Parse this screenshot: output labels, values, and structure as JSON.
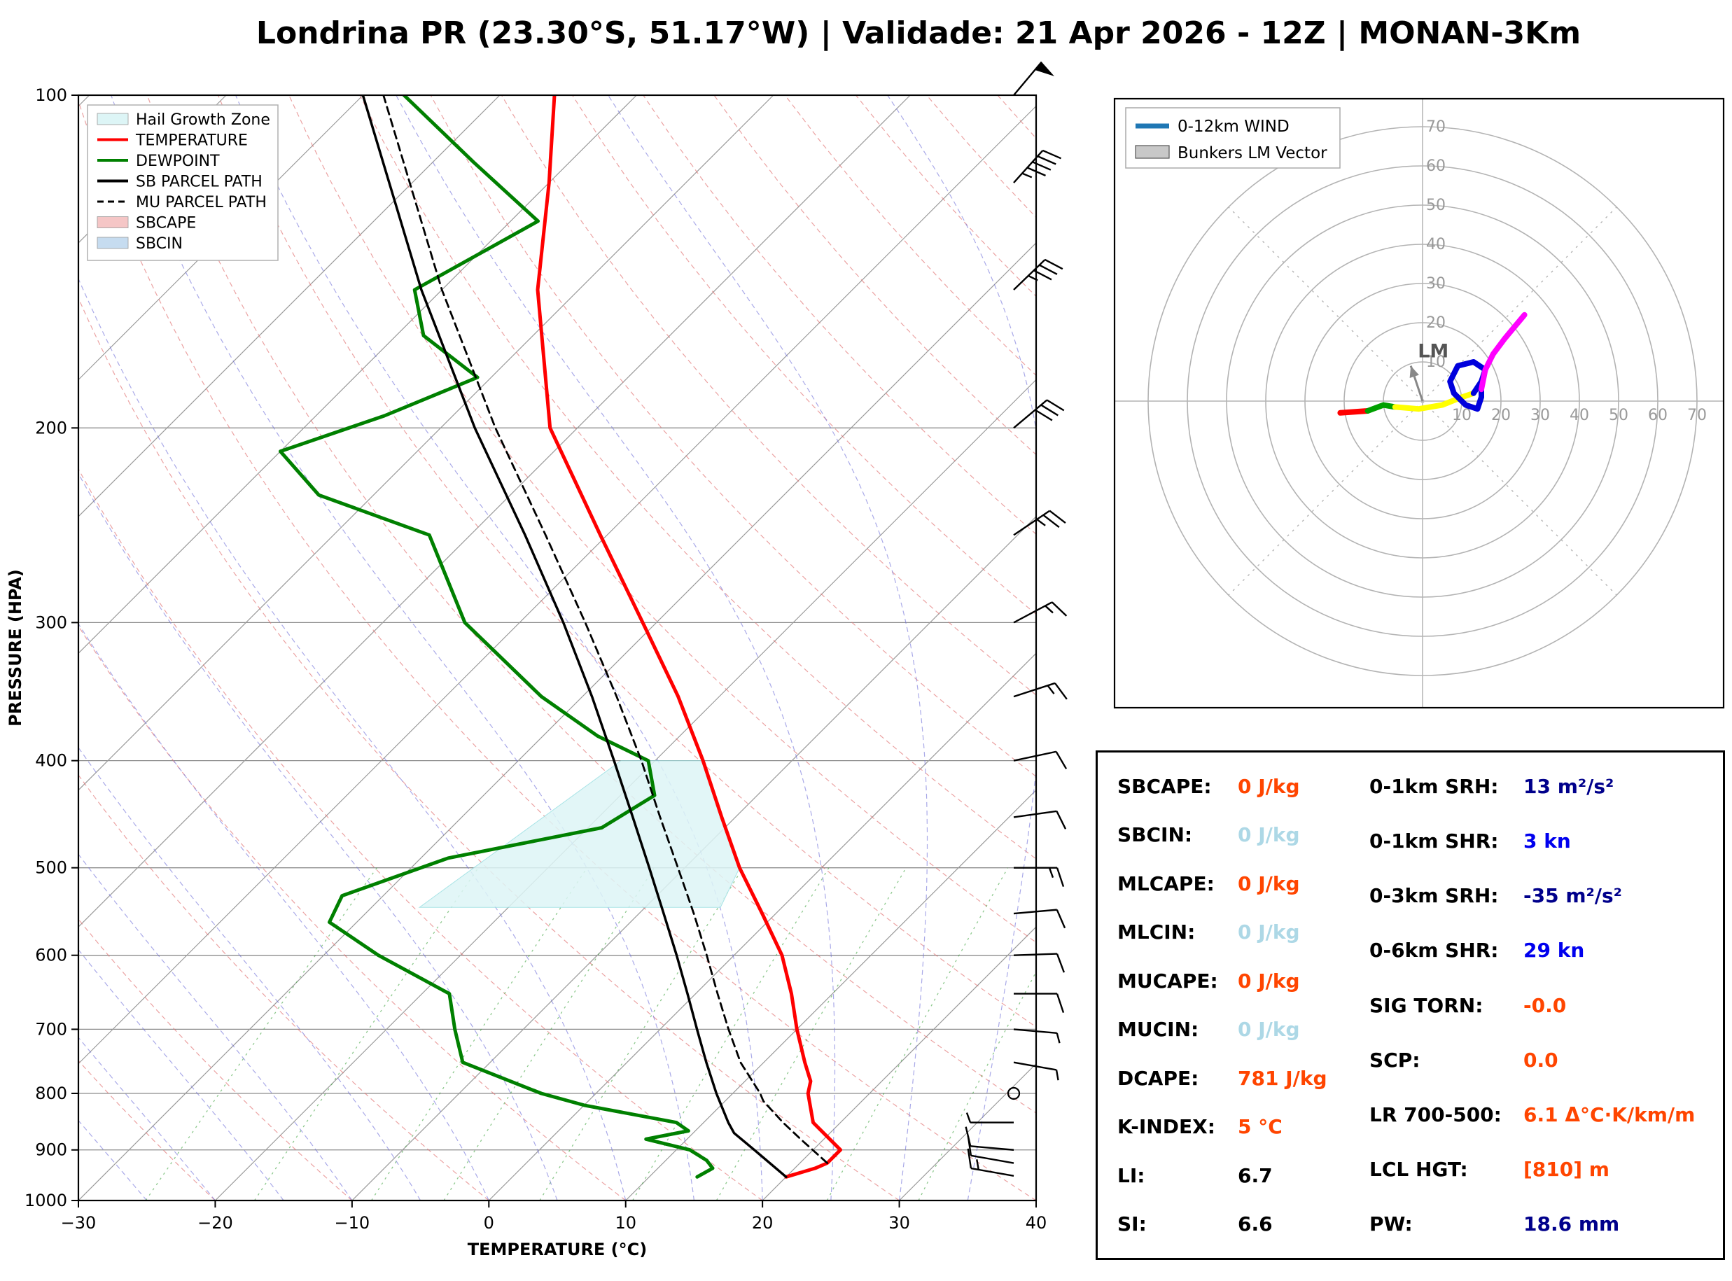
{
  "title": "Londrina PR (23.30°S, 51.17°W) | Validade: 21 Apr 2026 - 12Z | MONAN-3Km",
  "palette": {
    "temperature": "#FF0000",
    "dewpoint": "#008000",
    "parcel": "#000000",
    "hail_zone": "#DDF5F6",
    "sbcape_fill": "#F5C6C6",
    "sbcin_fill": "#C6DCF0",
    "orange": "#FF4500",
    "lightblue": "#ADD8E6",
    "blue": "#0000EE",
    "navy": "#00008B",
    "black": "#000000",
    "grid_gray": "#9A9A9A",
    "dry_adiabat": "#E07070",
    "moist_adiabat": "#7070D8",
    "mixing_ratio": "#3FA43F"
  },
  "skewt_legend": [
    {
      "label": "Hail Growth Zone",
      "swatch": "patch",
      "color": "#DDF5F6"
    },
    {
      "label": "TEMPERATURE",
      "swatch": "line",
      "color": "#FF0000"
    },
    {
      "label": "DEWPOINT",
      "swatch": "line",
      "color": "#008000"
    },
    {
      "label": "SB PARCEL PATH",
      "swatch": "line",
      "color": "#000000"
    },
    {
      "label": "MU PARCEL PATH",
      "swatch": "dashed",
      "color": "#000000"
    },
    {
      "label": "SBCAPE",
      "swatch": "patch",
      "color": "#F5C6C6"
    },
    {
      "label": "SBCIN",
      "swatch": "patch",
      "color": "#C6DCF0"
    }
  ],
  "hodo_legend": [
    {
      "label": "0-12km WIND",
      "swatch": "line",
      "color": "#1F77B4"
    },
    {
      "label": "Bunkers LM Vector",
      "swatch": "patch",
      "color": "#C8C8C8"
    }
  ],
  "chart_data": [
    {
      "type": "line",
      "name": "skew_t_log_p",
      "title": "Skew-T Log-P sounding",
      "xlabel": "TEMPERATURE (°C)",
      "ylabel": "PRESSURE (HPA)",
      "xlim": [
        -30,
        40
      ],
      "pressure_lim": [
        1000,
        100
      ],
      "x_ticks": [
        -30,
        -20,
        -10,
        0,
        10,
        20,
        30,
        40
      ],
      "p_ticks": [
        100,
        200,
        300,
        400,
        500,
        600,
        700,
        800,
        900,
        1000
      ],
      "grid": true,
      "series": [
        {
          "name": "TEMPERATURE",
          "color": "#FF0000",
          "style": "solid",
          "width": 5,
          "points_p_T": [
            [
              952,
              20
            ],
            [
              935,
              21.5
            ],
            [
              925,
              22
            ],
            [
              900,
              22
            ],
            [
              850,
              18
            ],
            [
              800,
              15.5
            ],
            [
              780,
              14.8
            ],
            [
              750,
              13
            ],
            [
              700,
              10
            ],
            [
              650,
              7
            ],
            [
              600,
              3.5
            ],
            [
              550,
              -1
            ],
            [
              500,
              -6
            ],
            [
              450,
              -11
            ],
            [
              400,
              -16.5
            ],
            [
              350,
              -23
            ],
            [
              300,
              -31
            ],
            [
              250,
              -40.5
            ],
            [
              200,
              -52
            ],
            [
              150,
              -63
            ],
            [
              120,
              -70
            ],
            [
              100,
              -76
            ]
          ]
        },
        {
          "name": "DEWPOINT",
          "color": "#008000",
          "style": "solid",
          "width": 5,
          "points_p_T": [
            [
              952,
              13.5
            ],
            [
              935,
              14
            ],
            [
              920,
              13
            ],
            [
              900,
              11
            ],
            [
              880,
              7
            ],
            [
              865,
              9.5
            ],
            [
              850,
              8
            ],
            [
              820,
              0
            ],
            [
              800,
              -4
            ],
            [
              750,
              -12
            ],
            [
              700,
              -15
            ],
            [
              650,
              -18
            ],
            [
              600,
              -26
            ],
            [
              560,
              -32
            ],
            [
              530,
              -33
            ],
            [
              490,
              -28
            ],
            [
              460,
              -19
            ],
            [
              430,
              -17.5
            ],
            [
              400,
              -20.5
            ],
            [
              380,
              -26
            ],
            [
              350,
              -33
            ],
            [
              300,
              -44
            ],
            [
              250,
              -53
            ],
            [
              230,
              -64
            ],
            [
              210,
              -70
            ],
            [
              195,
              -65
            ],
            [
              180,
              -61
            ],
            [
              165,
              -68
            ],
            [
              150,
              -72
            ],
            [
              130,
              -68
            ],
            [
              115,
              -77
            ],
            [
              100,
              -87
            ]
          ]
        },
        {
          "name": "SB PARCEL PATH",
          "color": "#000000",
          "style": "solid",
          "width": 3.5,
          "points_p_T": [
            [
              952,
              20
            ],
            [
              900,
              15.7
            ],
            [
              869,
              13
            ],
            [
              850,
              11.8
            ],
            [
              800,
              8.8
            ],
            [
              750,
              5.8
            ],
            [
              700,
              2.7
            ],
            [
              650,
              -0.6
            ],
            [
              600,
              -4.2
            ],
            [
              550,
              -8.2
            ],
            [
              500,
              -12.6
            ],
            [
              450,
              -17.5
            ],
            [
              400,
              -23
            ],
            [
              350,
              -29.3
            ],
            [
              300,
              -36.8
            ],
            [
              250,
              -46
            ],
            [
              200,
              -57.5
            ],
            [
              150,
              -71.5
            ],
            [
              100,
              -90
            ]
          ]
        },
        {
          "name": "MU PARCEL PATH",
          "color": "#000000",
          "style": "dashed",
          "width": 2.8,
          "points_p_T": [
            [
              925,
              22
            ],
            [
              880,
              18.3
            ],
            [
              850,
              15.8
            ],
            [
              813,
              12.8
            ],
            [
              800,
              12
            ],
            [
              750,
              8.3
            ],
            [
              700,
              5
            ],
            [
              650,
              1.6
            ],
            [
              600,
              -2
            ],
            [
              550,
              -6
            ],
            [
              500,
              -10.5
            ],
            [
              450,
              -15.5
            ],
            [
              400,
              -21
            ],
            [
              350,
              -27.5
            ],
            [
              300,
              -35.2
            ],
            [
              250,
              -44.5
            ],
            [
              200,
              -56
            ],
            [
              150,
              -70
            ],
            [
              100,
              -88.5
            ]
          ]
        }
      ],
      "hail_growth_zone": {
        "color": "#DDF5F6",
        "polygon_p_T": [
          [
            400,
            -22.5
          ],
          [
            400,
            -16.5
          ],
          [
            450,
            -11
          ],
          [
            500,
            -6
          ],
          [
            543,
            -4.5
          ],
          [
            543,
            -26.5
          ]
        ]
      },
      "wind_barbs_p_dir_kn": [
        [
          950,
          100,
          15
        ],
        [
          925,
          100,
          13
        ],
        [
          900,
          95,
          12
        ],
        [
          850,
          90,
          8
        ],
        [
          800,
          0,
          0
        ],
        [
          750,
          280,
          5
        ],
        [
          700,
          275,
          8
        ],
        [
          650,
          270,
          10
        ],
        [
          600,
          268,
          12
        ],
        [
          550,
          265,
          12
        ],
        [
          500,
          270,
          14
        ],
        [
          450,
          262,
          13
        ],
        [
          400,
          258,
          12
        ],
        [
          350,
          252,
          15
        ],
        [
          300,
          242,
          18
        ],
        [
          250,
          236,
          25
        ],
        [
          200,
          230,
          32
        ],
        [
          150,
          226,
          38
        ],
        [
          120,
          222,
          45
        ],
        [
          100,
          220,
          50
        ]
      ]
    },
    {
      "type": "line",
      "name": "hodograph",
      "ring_radii_kn": [
        10,
        20,
        30,
        40,
        50,
        60,
        70
      ],
      "segments": [
        {
          "color": "#FF0000",
          "points_uv_kn": [
            [
              -21,
              -3
            ],
            [
              -14,
              -2.5
            ]
          ]
        },
        {
          "color": "#00A000",
          "points_uv_kn": [
            [
              -14,
              -2.5
            ],
            [
              -10,
              -1
            ],
            [
              -7,
              -1.5
            ]
          ]
        },
        {
          "color": "#FFFF00",
          "points_uv_kn": [
            [
              -7,
              -1.5
            ],
            [
              -1,
              -2
            ],
            [
              5,
              -1
            ],
            [
              10,
              1
            ],
            [
              13,
              2
            ]
          ]
        },
        {
          "color": "#0000DC",
          "points_uv_kn": [
            [
              13,
              2
            ],
            [
              15,
              5
            ],
            [
              16,
              8
            ],
            [
              13,
              10
            ],
            [
              9,
              9
            ],
            [
              7,
              5
            ],
            [
              8,
              2
            ],
            [
              11,
              -1
            ],
            [
              14,
              -2
            ],
            [
              15,
              1
            ],
            [
              15,
              3
            ]
          ]
        },
        {
          "color": "#FF00FF",
          "points_uv_kn": [
            [
              15,
              3
            ],
            [
              16,
              8
            ],
            [
              18,
              12
            ],
            [
              21,
              16
            ],
            [
              26,
              22
            ]
          ]
        }
      ],
      "lm_vector_uv_kn": [
        -3,
        9
      ],
      "lm_label": "LM"
    }
  ],
  "table": {
    "left": [
      {
        "label": "SBCAPE:",
        "value": "0 J/kg",
        "color": "orange"
      },
      {
        "label": "SBCIN:",
        "value": "0 J/kg",
        "color": "lightblue"
      },
      {
        "label": "MLCAPE:",
        "value": "0 J/kg",
        "color": "orange"
      },
      {
        "label": "MLCIN:",
        "value": "0 J/kg",
        "color": "lightblue"
      },
      {
        "label": "MUCAPE:",
        "value": "0 J/kg",
        "color": "orange"
      },
      {
        "label": "MUCIN:",
        "value": "0 J/kg",
        "color": "lightblue"
      },
      {
        "label": "DCAPE:",
        "value": "781 J/kg",
        "color": "orange"
      },
      {
        "label": "K-INDEX:",
        "value": "5 °C",
        "color": "orange"
      },
      {
        "label": "LI:",
        "value": "6.7",
        "color": "black"
      },
      {
        "label": "SI:",
        "value": "6.6",
        "color": "black"
      }
    ],
    "right": [
      {
        "label": "0-1km SRH:",
        "value": "13 m²/s²",
        "color": "navy"
      },
      {
        "label": "0-1km SHR:",
        "value": "3 kn",
        "color": "blue"
      },
      {
        "label": "0-3km SRH:",
        "value": "-35 m²/s²",
        "color": "navy"
      },
      {
        "label": "0-6km SHR:",
        "value": "29 kn",
        "color": "blue"
      },
      {
        "label": "SIG TORN:",
        "value": "-0.0",
        "color": "orange"
      },
      {
        "label": "SCP:",
        "value": "0.0",
        "color": "orange"
      },
      {
        "label": "LR 700-500:",
        "value": "6.1 Δ°C·K/km/m",
        "color": "orange"
      },
      {
        "label": "LCL HGT:",
        "value": "[810] m",
        "color": "orange"
      },
      {
        "label": "PW:",
        "value": "18.6 mm",
        "color": "navy"
      }
    ]
  }
}
